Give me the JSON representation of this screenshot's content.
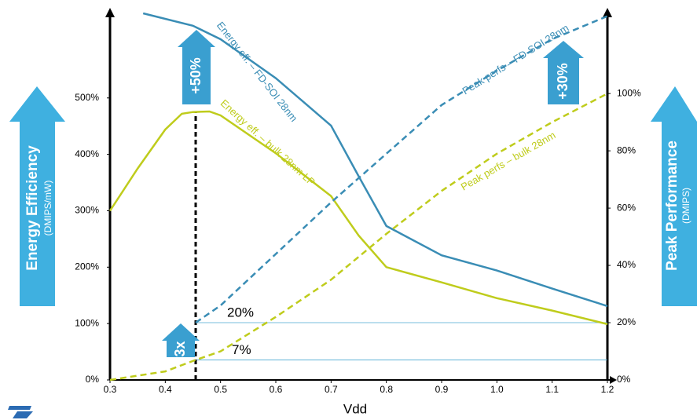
{
  "chart_data": {
    "type": "line",
    "x_label": "Vdd",
    "left_label": "Energy Efficiency",
    "left_sublabel": "(DMIPS/mW)",
    "right_label": "Peak Performance",
    "right_sublabel": "(DMIPS)",
    "xlim": [
      0.3,
      1.2
    ],
    "xticks": [
      0.3,
      0.4,
      0.5,
      0.6,
      0.7,
      0.8,
      0.9,
      {
        "value": 1,
        "label": "1.0"
      },
      1.1,
      1.2
    ],
    "ylim": [
      0,
      650
    ],
    "yticks": [
      {
        "value": 0,
        "label": "0%"
      },
      {
        "value": 100,
        "label": "100%"
      },
      {
        "value": 200,
        "label": "200%"
      },
      {
        "value": 300,
        "label": "300%"
      },
      {
        "value": 400,
        "label": "400%"
      },
      {
        "value": 500,
        "label": "500%"
      }
    ],
    "y2lim": [
      0,
      128
    ],
    "y2ticks": [
      {
        "value": 0,
        "label": "0%"
      },
      {
        "value": 20,
        "label": "20%"
      },
      {
        "value": 40,
        "label": "40%"
      },
      {
        "value": 60,
        "label": "60%"
      },
      {
        "value": 80,
        "label": "80%"
      },
      {
        "value": 100,
        "label": "100%"
      }
    ],
    "series": [
      {
        "name": "Energy eff. – FD-SOI 28nm",
        "color": "#3a8db5",
        "dashed": false,
        "x": [
          0.36,
          0.45,
          0.5,
          0.6,
          0.7,
          0.75,
          0.8,
          0.9,
          1.0,
          1.1,
          1.2
        ],
        "values": [
          650,
          628,
          604,
          535,
          451,
          361,
          273,
          221,
          194,
          162,
          131
        ]
      },
      {
        "name": "Energy eff. – bulk 28nm LP",
        "color": "#bfcc1c",
        "dashed": false,
        "x": [
          0.3,
          0.35,
          0.4,
          0.43,
          0.45,
          0.48,
          0.5,
          0.6,
          0.7,
          0.75,
          0.8,
          0.9,
          1.0,
          1.1,
          1.2
        ],
        "values": [
          300,
          375,
          444,
          472,
          475,
          476,
          469,
          402,
          326,
          256,
          200,
          173,
          145,
          123,
          99
        ]
      },
      {
        "name": "Peak perfs – FD-SOI 28nm",
        "color": "#3a8db5",
        "dashed": true,
        "axis": "y2",
        "x": [
          0.455,
          0.5,
          0.6,
          0.7,
          0.8,
          0.9,
          1.0,
          1.1,
          1.2
        ],
        "values": [
          20,
          26,
          44,
          62,
          79,
          96,
          108,
          119,
          127
        ]
      },
      {
        "name": "Peak perfs – bulk 28nm",
        "color": "#bfcc1c",
        "dashed": true,
        "axis": "y2",
        "x": [
          0.3,
          0.4,
          0.455,
          0.5,
          0.6,
          0.7,
          0.8,
          0.9,
          1.0,
          1.1,
          1.2
        ],
        "values": [
          0,
          3,
          7,
          10,
          22,
          35,
          51,
          66,
          79,
          90,
          100
        ]
      }
    ],
    "gains": [
      "+50%",
      "+30%",
      "3x"
    ],
    "annotations": [
      {
        "value": 20,
        "label": "20%"
      },
      {
        "value": 7,
        "label": "7%"
      }
    ]
  }
}
